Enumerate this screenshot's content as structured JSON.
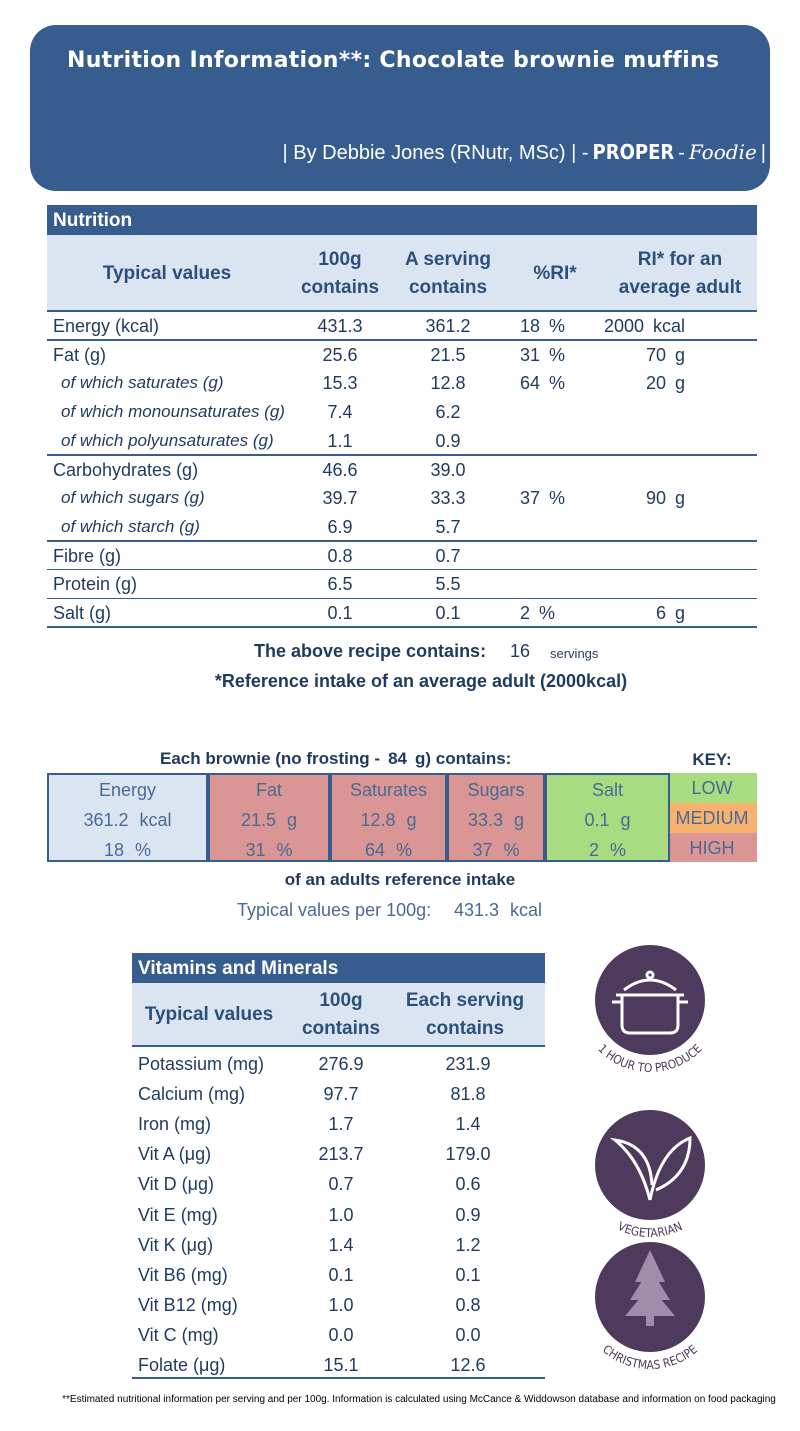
{
  "header": {
    "title": "Nutrition Information**: Chocolate brownie muffins",
    "byline": [
      "| By Debbie Jones (RNutr, MSc) | -",
      "PROPER",
      "-",
      "Foodie",
      "|"
    ]
  },
  "nutrition": {
    "title": "Nutrition",
    "headers": [
      "Typical values",
      "100g contains",
      "A serving contains",
      "%RI*",
      "RI* for an average adult"
    ],
    "groups": [
      {
        "label": "Energy (kcal)",
        "per_100g": "431.3",
        "per_serving": "361.2",
        "ri_percent": "18 %",
        "ri_adult": "2000 kcal"
      },
      {
        "label": "Fat (g)",
        "per_100g": "25.6",
        "per_serving": "21.5",
        "ri_percent": "31 %",
        "ri_adult": "70 g",
        "sub_rows": [
          {
            "label": "of which saturates (g)",
            "per_100g": "15.3",
            "per_serving": "12.8",
            "ri_percent": "64 %",
            "ri_adult": "20 g"
          },
          {
            "label": "of which monounsaturates (g)",
            "per_100g": "7.4",
            "per_serving": "6.2"
          },
          {
            "label": "of which polyunsaturates (g)",
            "per_100g": "1.1",
            "per_serving": "0.9"
          }
        ]
      },
      {
        "label": "Carbohydrates (g)",
        "per_100g": "46.6",
        "per_serving": "39.0",
        "sub_rows": [
          {
            "label": "of which sugars (g)",
            "per_100g": "39.7",
            "per_serving": "33.3",
            "ri_percent": "37 %",
            "ri_adult": "90 g"
          },
          {
            "label": "of which starch (g)",
            "per_100g": "6.9",
            "per_serving": "5.7"
          }
        ]
      },
      {
        "label": "Fibre (g)",
        "per_100g": "0.8",
        "per_serving": "0.7"
      },
      {
        "label": "Protein (g)",
        "per_100g": "6.5",
        "per_serving": "5.5"
      },
      {
        "label": "Salt (g)",
        "per_100g": "0.1",
        "per_serving": "0.1",
        "ri_percent": "2 %",
        "ri_adult": "6 g"
      }
    ]
  },
  "recipe": {
    "label": "The above recipe contains:",
    "servings": "16",
    "unit": "servings",
    "reference": "*Reference intake of an average adult (2000kcal)"
  },
  "traffic": {
    "heading": [
      "Each brownie (no frosting -",
      "84",
      "g) contains:"
    ],
    "key_title": "KEY:",
    "columns": [
      {
        "name": "Energy",
        "amount": "361.2 kcal",
        "ri": "18 %",
        "color": "#dbe5f1"
      },
      {
        "name": "Fat",
        "amount": "21.5 g",
        "ri": "31 %",
        "color": "#d99694"
      },
      {
        "name": "Saturates",
        "amount": "12.8 g",
        "ri": "64 %",
        "color": "#d99694"
      },
      {
        "name": "Sugars",
        "amount": "33.3 g",
        "ri": "37 %",
        "color": "#d99694"
      },
      {
        "name": "Salt",
        "amount": "0.1 g",
        "ri": "2 %",
        "color": "#a9db80"
      }
    ],
    "key": [
      {
        "label": "LOW",
        "color": "#a9db80"
      },
      {
        "label": "MEDIUM",
        "color": "#f8b26f"
      },
      {
        "label": "HIGH",
        "color": "#d99694"
      }
    ],
    "footer": "of an adults reference intake",
    "per100_label": "Typical values per 100g:",
    "per100_value": "431.3 kcal"
  },
  "vitamins": {
    "title": "Vitamins and Minerals",
    "headers": [
      "Typical values",
      "100g contains",
      "Each serving contains"
    ],
    "rows": [
      [
        "Potassium (mg)",
        "276.9",
        "231.9"
      ],
      [
        "Calcium (mg)",
        "97.7",
        "81.8"
      ],
      [
        "Iron (mg)",
        "1.7",
        "1.4"
      ],
      [
        "Vit A (μg)",
        "213.7",
        "179.0"
      ],
      [
        "Vit D (μg)",
        "0.7",
        "0.6"
      ],
      [
        "Vit E (mg)",
        "1.0",
        "0.9"
      ],
      [
        "Vit K (μg)",
        "1.4",
        "1.2"
      ],
      [
        "Vit B6 (mg)",
        "0.1",
        "0.1"
      ],
      [
        "Vit B12 (mg)",
        "1.0",
        "0.8"
      ],
      [
        "Vit C (mg)",
        "0.0",
        "0.0"
      ],
      [
        "Folate (μg)",
        "15.1",
        "12.6"
      ]
    ]
  },
  "icons": [
    "1 HOUR TO PRODUCE",
    "VEGETARIAN",
    "CHRISTMAS RECIPE"
  ],
  "footnote": "**Estimated nutritional information per serving and per 100g. Information is calculated using McCance & Widdowson database and information on food packaging"
}
